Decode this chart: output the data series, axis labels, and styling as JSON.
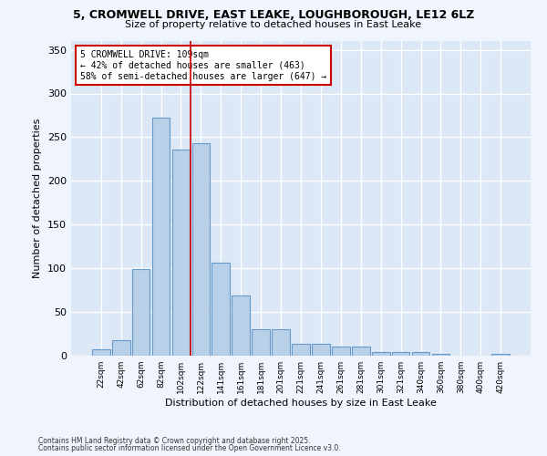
{
  "title_line1": "5, CROMWELL DRIVE, EAST LEAKE, LOUGHBOROUGH, LE12 6LZ",
  "title_line2": "Size of property relative to detached houses in East Leake",
  "xlabel": "Distribution of detached houses by size in East Leake",
  "ylabel": "Number of detached properties",
  "categories": [
    "22sqm",
    "42sqm",
    "62sqm",
    "82sqm",
    "102sqm",
    "122sqm",
    "141sqm",
    "161sqm",
    "181sqm",
    "201sqm",
    "221sqm",
    "241sqm",
    "261sqm",
    "281sqm",
    "301sqm",
    "321sqm",
    "340sqm",
    "360sqm",
    "380sqm",
    "400sqm",
    "420sqm"
  ],
  "values": [
    7,
    18,
    99,
    272,
    236,
    243,
    106,
    69,
    30,
    30,
    14,
    14,
    10,
    10,
    4,
    4,
    4,
    2,
    0,
    0,
    2
  ],
  "bar_color": "#b8d0e8",
  "bar_edge_color": "#6699cc",
  "vline_x": 4.5,
  "vline_color": "#cc0000",
  "annotation_text": "5 CROMWELL DRIVE: 109sqm\n← 42% of detached houses are smaller (463)\n58% of semi-detached houses are larger (647) →",
  "annotation_box_color": "#ffffff",
  "annotation_border_color": "#cc0000",
  "ylim": [
    0,
    360
  ],
  "yticks": [
    0,
    50,
    100,
    150,
    200,
    250,
    300,
    350
  ],
  "bg_color": "#dce8f5",
  "fig_color": "#f0f4fc",
  "footer_line1": "Contains HM Land Registry data © Crown copyright and database right 2025.",
  "footer_line2": "Contains public sector information licensed under the Open Government Licence v3.0."
}
